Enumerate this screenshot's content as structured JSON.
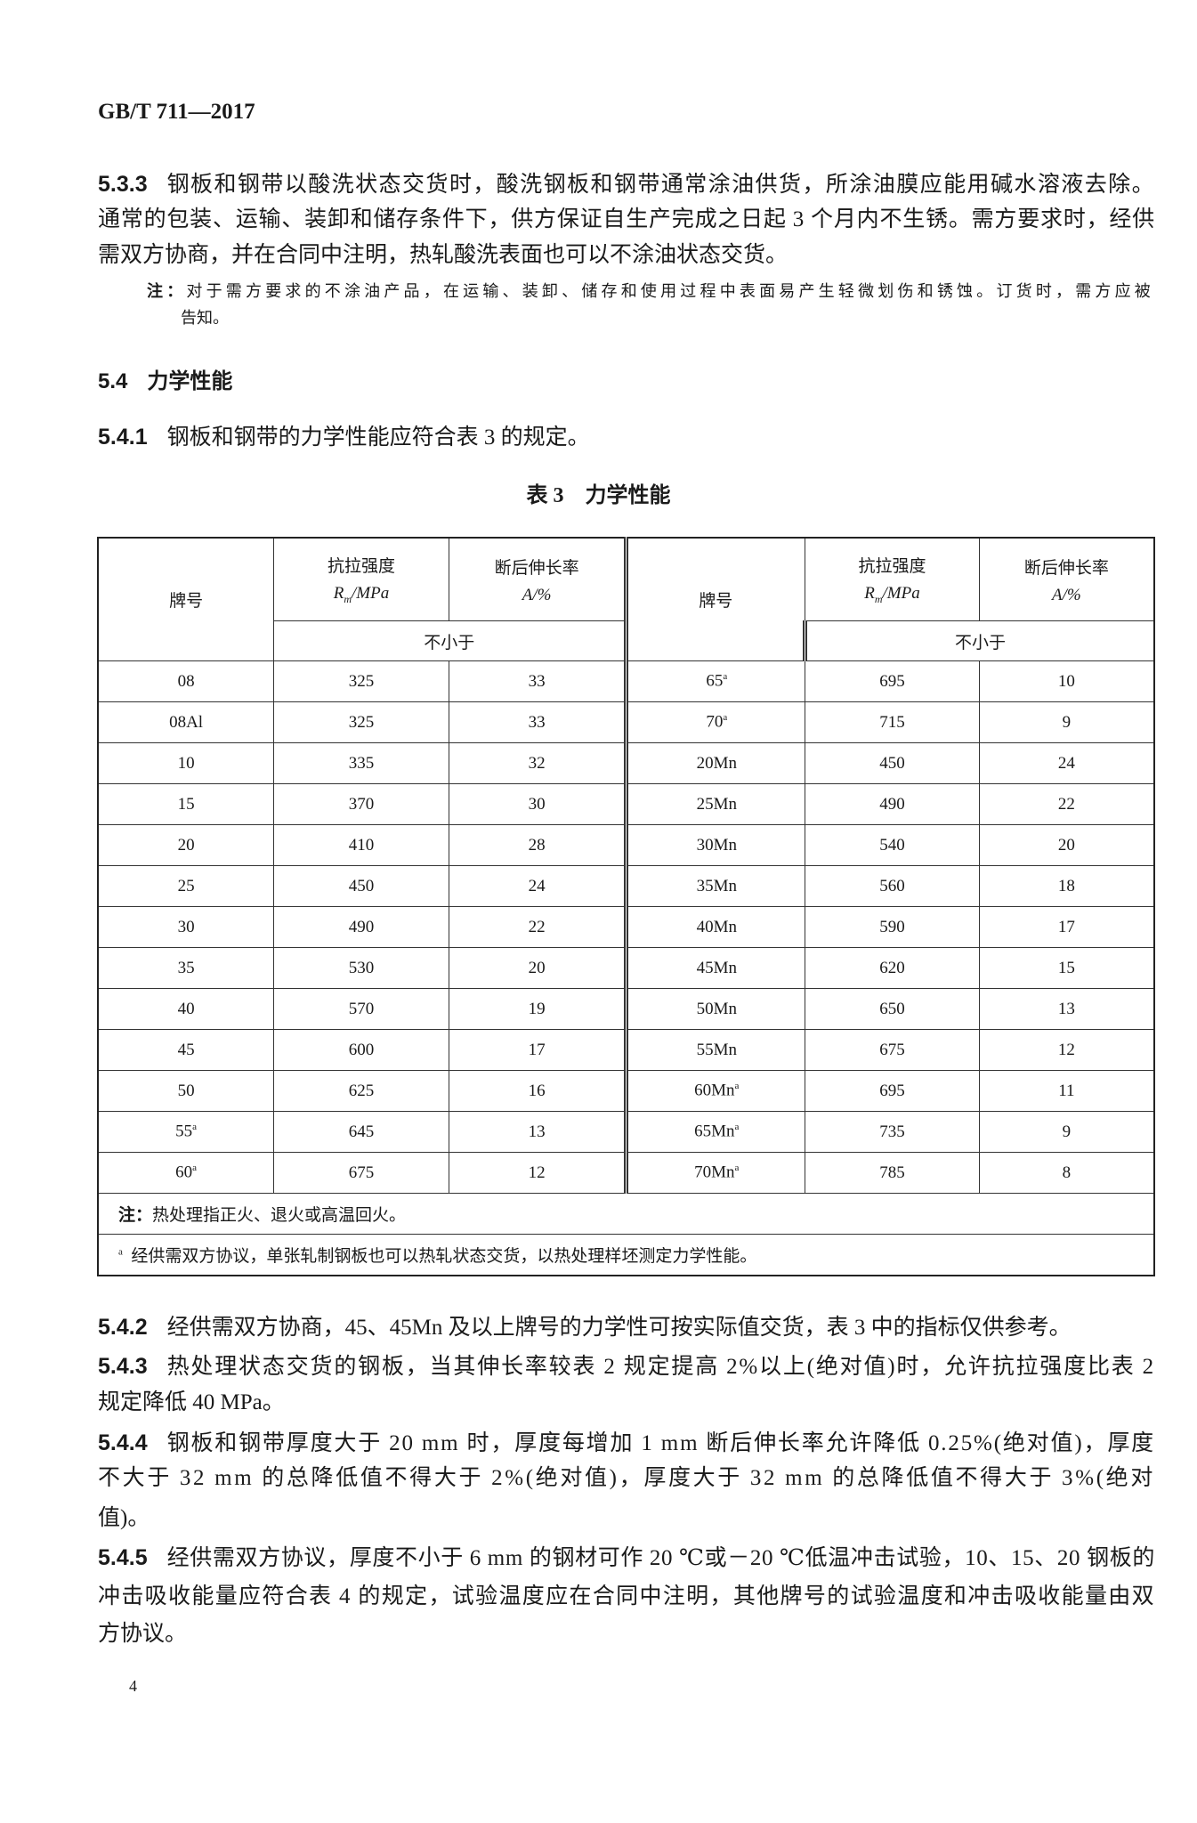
{
  "header": "GB/T 711—2017",
  "s533": {
    "num": "5.3.3",
    "lines": [
      "钢板和钢带以酸洗状态交货时，酸洗钢板和钢带通常涂油供货，所涂油膜应能用碱水溶液去除。",
      "通常的包装、运输、装卸和储存条件下，供方保证自生产完成之日起 3 个月内不生锈。需方要求时，经供",
      "需双方协商，并在合同中注明，热轧酸洗表面也可以不涂油状态交货。"
    ],
    "note_label": "注：",
    "note_lines": [
      "对于需方要求的不涂油产品，在运输、装卸、储存和使用过程中表面易产生轻微划伤和锈蚀。订货时，需方应被",
      "告知。"
    ]
  },
  "s54": {
    "num": "5.4",
    "title": "力学性能"
  },
  "s541": {
    "num": "5.4.1",
    "text": "钢板和钢带的力学性能应符合表 3 的规定。"
  },
  "table": {
    "caption": "表 3　力学性能",
    "col_grade": "牌号",
    "col_rm": "抗拉强度",
    "col_rm_unit": "Rm/MPa",
    "col_a": "断后伸长率",
    "col_a_unit": "A/%",
    "min_label": "不小于",
    "rows": [
      {
        "g1": "08",
        "s1": "325",
        "a1": "33",
        "g2": "65",
        "f2": "a",
        "s2": "695",
        "a2": "10"
      },
      {
        "g1": "08Al",
        "s1": "325",
        "a1": "33",
        "g2": "70",
        "f2": "a",
        "s2": "715",
        "a2": "9"
      },
      {
        "g1": "10",
        "s1": "335",
        "a1": "32",
        "g2": "20Mn",
        "s2": "450",
        "a2": "24"
      },
      {
        "g1": "15",
        "s1": "370",
        "a1": "30",
        "g2": "25Mn",
        "s2": "490",
        "a2": "22"
      },
      {
        "g1": "20",
        "s1": "410",
        "a1": "28",
        "g2": "30Mn",
        "s2": "540",
        "a2": "20"
      },
      {
        "g1": "25",
        "s1": "450",
        "a1": "24",
        "g2": "35Mn",
        "s2": "560",
        "a2": "18"
      },
      {
        "g1": "30",
        "s1": "490",
        "a1": "22",
        "g2": "40Mn",
        "s2": "590",
        "a2": "17"
      },
      {
        "g1": "35",
        "s1": "530",
        "a1": "20",
        "g2": "45Mn",
        "s2": "620",
        "a2": "15"
      },
      {
        "g1": "40",
        "s1": "570",
        "a1": "19",
        "g2": "50Mn",
        "s2": "650",
        "a2": "13"
      },
      {
        "g1": "45",
        "s1": "600",
        "a1": "17",
        "g2": "55Mn",
        "s2": "675",
        "a2": "12"
      },
      {
        "g1": "50",
        "s1": "625",
        "a1": "16",
        "g2": "60Mn",
        "f2": "a",
        "s2": "695",
        "a2": "11"
      },
      {
        "g1": "55",
        "f1": "a",
        "s1": "645",
        "a1": "13",
        "g2": "65Mn",
        "f2": "a",
        "s2": "735",
        "a2": "9"
      },
      {
        "g1": "60",
        "f1": "a",
        "s1": "675",
        "a1": "12",
        "g2": "70Mn",
        "f2": "a",
        "s2": "785",
        "a2": "8"
      }
    ],
    "note_label": "注：",
    "note": "热处理指正火、退火或高温回火。",
    "footnote_mark": "a",
    "footnote": "经供需双方协议，单张轧制钢板也可以热轧状态交货，以热处理样坯测定力学性能。"
  },
  "paragraphs": [
    {
      "num": "5.4.2",
      "lines": [
        "经供需双方协商，45、45Mn 及以上牌号的力学性可按实际值交货，表 3 中的指标仅供参考。"
      ]
    },
    {
      "num": "5.4.3",
      "lines": [
        "热处理状态交货的钢板，当其伸长率较表 2 规定提高 2%以上(绝对值)时，允许抗拉强度比表 2",
        "规定降低 40 MPa。"
      ]
    },
    {
      "num": "5.4.4",
      "lines": [
        "钢板和钢带厚度大于 20 mm 时，厚度每增加 1 mm 断后伸长率允许降低 0.25%(绝对值)，厚度",
        "不大于 32 mm 的总降低值不得大于 2%(绝对值)，厚度大于 32 mm 的总降低值不得大于 3%(绝对",
        "值)。"
      ]
    },
    {
      "num": "5.4.5",
      "lines": [
        "经供需双方协议，厚度不小于 6 mm 的钢材可作 20 ℃或－20 ℃低温冲击试验，10、15、20 钢板的",
        "冲击吸收能量应符合表 4 的规定，试验温度应在合同中注明，其他牌号的试验温度和冲击吸收能量由双",
        "方协议。"
      ]
    }
  ],
  "page_number": "4"
}
